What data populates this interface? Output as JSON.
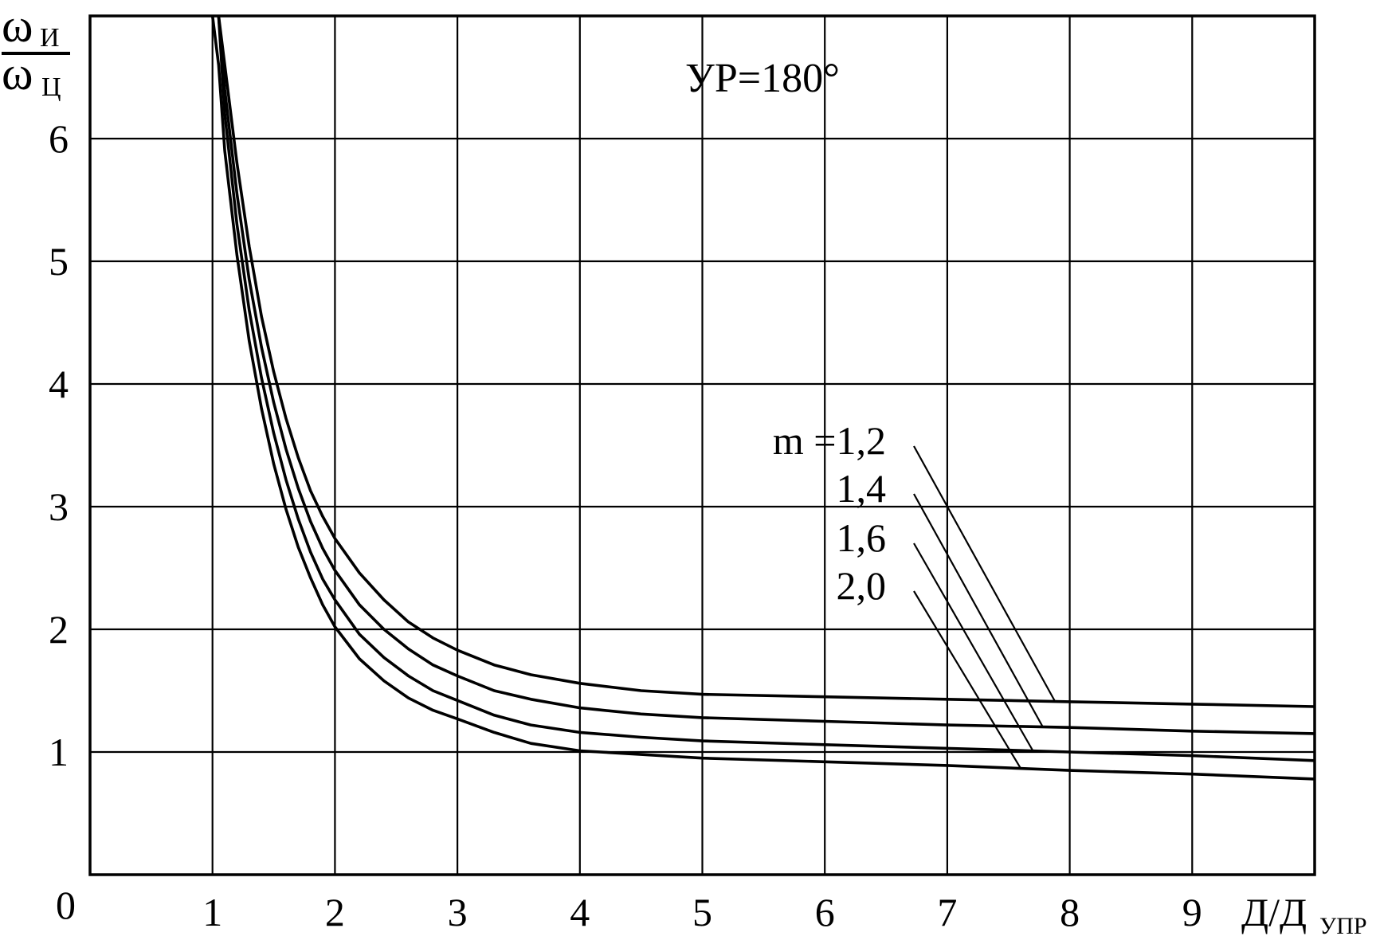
{
  "chart_data": {
    "type": "line",
    "title": "",
    "annotation": "УР=180°",
    "xlabel": {
      "main": "Д/Д",
      "sub": "УПР"
    },
    "ylabel": {
      "numerator": "ω",
      "numerator_sub": "И",
      "denominator": "ω",
      "denominator_sub": "Ц"
    },
    "origin_label": "0",
    "xlim": [
      0,
      10
    ],
    "ylim": [
      0,
      7
    ],
    "x_ticks": [
      "1",
      "2",
      "3",
      "4",
      "5",
      "6",
      "7",
      "8",
      "9"
    ],
    "y_ticks": [
      "1",
      "2",
      "3",
      "4",
      "5",
      "6"
    ],
    "grid": true,
    "legend_labels": [
      "m =1,2",
      "1,4",
      "1,6",
      "2,0"
    ],
    "series": [
      {
        "name": "m =1,2",
        "x": [
          1.05,
          1.1,
          1.2,
          1.3,
          1.4,
          1.5,
          1.6,
          1.7,
          1.8,
          1.9,
          2.0,
          2.2,
          2.4,
          2.6,
          2.8,
          3.0,
          3.3,
          3.6,
          4.0,
          4.5,
          5.0,
          6.0,
          7.0,
          8.0,
          9.0,
          10.0
        ],
        "y": [
          7.0,
          6.6,
          5.8,
          5.12,
          4.55,
          4.1,
          3.72,
          3.4,
          3.13,
          2.92,
          2.74,
          2.46,
          2.24,
          2.06,
          1.93,
          1.83,
          1.71,
          1.63,
          1.56,
          1.5,
          1.47,
          1.45,
          1.43,
          1.41,
          1.39,
          1.37
        ]
      },
      {
        "name": "1,4",
        "x": [
          1.05,
          1.1,
          1.2,
          1.3,
          1.4,
          1.5,
          1.6,
          1.7,
          1.8,
          1.9,
          2.0,
          2.2,
          2.4,
          2.6,
          2.8,
          3.0,
          3.3,
          3.6,
          4.0,
          4.5,
          5.0,
          6.0,
          7.0,
          8.0,
          9.0,
          10.0
        ],
        "y": [
          7.0,
          6.4,
          5.55,
          4.85,
          4.3,
          3.85,
          3.47,
          3.15,
          2.88,
          2.66,
          2.48,
          2.2,
          2.0,
          1.84,
          1.71,
          1.62,
          1.5,
          1.43,
          1.36,
          1.31,
          1.28,
          1.25,
          1.22,
          1.2,
          1.17,
          1.15
        ]
      },
      {
        "name": "1,6",
        "x": [
          1.05,
          1.1,
          1.2,
          1.3,
          1.4,
          1.5,
          1.6,
          1.7,
          1.8,
          1.9,
          2.0,
          2.2,
          2.4,
          2.6,
          2.8,
          3.0,
          3.3,
          3.6,
          4.0,
          4.5,
          5.0,
          6.0,
          7.0,
          8.0,
          9.0,
          10.0
        ],
        "y": [
          7.0,
          6.2,
          5.3,
          4.6,
          4.05,
          3.6,
          3.22,
          2.9,
          2.63,
          2.41,
          2.24,
          1.96,
          1.77,
          1.62,
          1.5,
          1.42,
          1.3,
          1.22,
          1.16,
          1.12,
          1.09,
          1.06,
          1.03,
          1.0,
          0.97,
          0.93
        ]
      },
      {
        "name": "2,0",
        "x": [
          1.0,
          1.05,
          1.1,
          1.2,
          1.3,
          1.4,
          1.5,
          1.6,
          1.7,
          1.8,
          1.9,
          2.0,
          2.2,
          2.4,
          2.6,
          2.8,
          3.0,
          3.3,
          3.6,
          4.0,
          4.5,
          5.0,
          6.0,
          7.0,
          8.0,
          9.0,
          10.0
        ],
        "y": [
          7.0,
          6.6,
          5.9,
          5.05,
          4.35,
          3.8,
          3.35,
          2.98,
          2.67,
          2.42,
          2.2,
          2.02,
          1.76,
          1.58,
          1.44,
          1.34,
          1.27,
          1.16,
          1.07,
          1.01,
          0.98,
          0.95,
          0.92,
          0.89,
          0.85,
          0.82,
          0.78
        ]
      }
    ]
  }
}
